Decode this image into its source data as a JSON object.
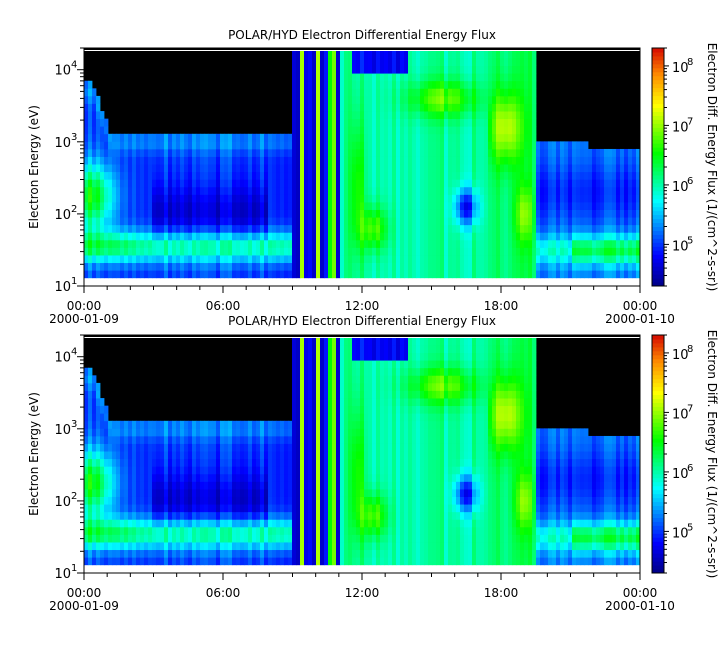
{
  "chart_data": [
    {
      "type": "heatmap",
      "title": "POLAR/HYD  Electron Differential Energy Flux",
      "ylabel": "Electron Energy (eV)",
      "yscale": "log",
      "ylim": [
        10,
        20000
      ],
      "y_ticks": [
        {
          "value": 10,
          "base": "10",
          "exp": "1"
        },
        {
          "value": 100,
          "base": "10",
          "exp": "2"
        },
        {
          "value": 1000,
          "base": "10",
          "exp": "3"
        },
        {
          "value": 10000,
          "base": "10",
          "exp": "4"
        }
      ],
      "x_ticks": [
        {
          "hour": 0,
          "label": "00:00",
          "sublabel": "2000-01-09"
        },
        {
          "hour": 6,
          "label": "06:00",
          "sublabel": ""
        },
        {
          "hour": 12,
          "label": "12:00",
          "sublabel": ""
        },
        {
          "hour": 18,
          "label": "18:00",
          "sublabel": ""
        },
        {
          "hour": 24,
          "label": "00:00",
          "sublabel": "2000-01-10"
        }
      ],
      "xlim_hours": [
        0,
        24
      ],
      "colorbar": {
        "label": "Electron Diff. Energy Flux (1/(cm^2-s-sr))",
        "scale": "log",
        "range": [
          20000,
          200000000
        ],
        "ticks": [
          {
            "value": 100000,
            "base": "10",
            "exp": "5"
          },
          {
            "value": 1000000,
            "base": "10",
            "exp": "6"
          },
          {
            "value": 10000000,
            "base": "10",
            "exp": "7"
          },
          {
            "value": 100000000,
            "base": "10",
            "exp": "8"
          }
        ]
      },
      "features": [
        {
          "span_hours": [
            0,
            9
          ],
          "description": "plasma sheet: log flux ~5 above ~40 eV, band ~6.5-7 near 30-60 eV, cutoff ~1.2 keV"
        },
        {
          "span_hours": [
            9,
            11
          ],
          "description": "alternating bursts across full energy range"
        },
        {
          "span_hours": [
            11,
            17.5
          ],
          "description": "broad green fluxes 6-6.5 with enhancements near 50 eV and 5 keV"
        },
        {
          "span_hours": [
            17.5,
            19.5
          ],
          "description": "intense yellow/orange band ~7 near 1-3 keV"
        },
        {
          "span_hours": [
            19.5,
            24
          ],
          "description": "decay: cutoff ~1 keV, low-energy band ~30 eV"
        }
      ]
    },
    {
      "type": "heatmap",
      "title": "POLAR/HYD  Electron Differential Energy Flux",
      "ylabel": "Electron Energy (eV)",
      "yscale": "log",
      "ylim": [
        10,
        20000
      ],
      "y_ticks": [
        {
          "value": 10,
          "base": "10",
          "exp": "1"
        },
        {
          "value": 100,
          "base": "10",
          "exp": "2"
        },
        {
          "value": 1000,
          "base": "10",
          "exp": "3"
        },
        {
          "value": 10000,
          "base": "10",
          "exp": "4"
        }
      ],
      "x_ticks": [
        {
          "hour": 0,
          "label": "00:00",
          "sublabel": "2000-01-09"
        },
        {
          "hour": 6,
          "label": "06:00",
          "sublabel": ""
        },
        {
          "hour": 12,
          "label": "12:00",
          "sublabel": ""
        },
        {
          "hour": 18,
          "label": "18:00",
          "sublabel": ""
        },
        {
          "hour": 24,
          "label": "00:00",
          "sublabel": "2000-01-10"
        }
      ],
      "xlim_hours": [
        0,
        24
      ],
      "colorbar": {
        "label": "Electron Diff. Energy Flux (1/(cm^2-s-sr))",
        "scale": "log",
        "range": [
          20000,
          200000000
        ],
        "ticks": [
          {
            "value": 100000,
            "base": "10",
            "exp": "5"
          },
          {
            "value": 1000000,
            "base": "10",
            "exp": "6"
          },
          {
            "value": 10000000,
            "base": "10",
            "exp": "7"
          },
          {
            "value": 100000000,
            "base": "10",
            "exp": "8"
          }
        ]
      },
      "features": [
        {
          "span_hours": [
            0,
            9
          ],
          "description": "plasma sheet: log flux ~5 above ~40 eV, band ~6.5-7 near 30-60 eV, cutoff ~1.2 keV"
        },
        {
          "span_hours": [
            9,
            11
          ],
          "description": "alternating bursts across full energy range"
        },
        {
          "span_hours": [
            11,
            17.5
          ],
          "description": "broad green fluxes 6-6.5 with enhancements near 50 eV and 5 keV"
        },
        {
          "span_hours": [
            17.5,
            19.5
          ],
          "description": "intense yellow/orange band ~7 near 1-3 keV"
        },
        {
          "span_hours": [
            19.5,
            24
          ],
          "description": "decay: cutoff ~1 keV, low-energy band ~30 eV"
        }
      ]
    }
  ]
}
